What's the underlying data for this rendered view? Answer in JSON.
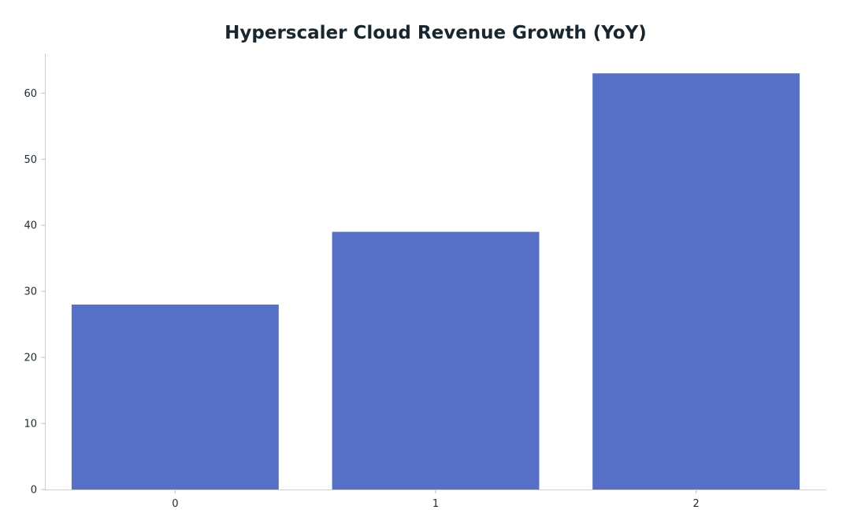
{
  "chart_data": {
    "type": "bar",
    "title": "Hyperscaler Cloud Revenue Growth (YoY)",
    "xlabel": "",
    "ylabel": "",
    "categories": [
      "0",
      "1",
      "2"
    ],
    "values": [
      28,
      39,
      63
    ],
    "ylim": [
      0,
      66
    ],
    "yticks": [
      0,
      10,
      20,
      30,
      40,
      50,
      60
    ],
    "grid": false,
    "legend": "none",
    "colors": {
      "bar": "#5570c6",
      "title": "#17262f",
      "axis": "#cfcfcf"
    }
  }
}
